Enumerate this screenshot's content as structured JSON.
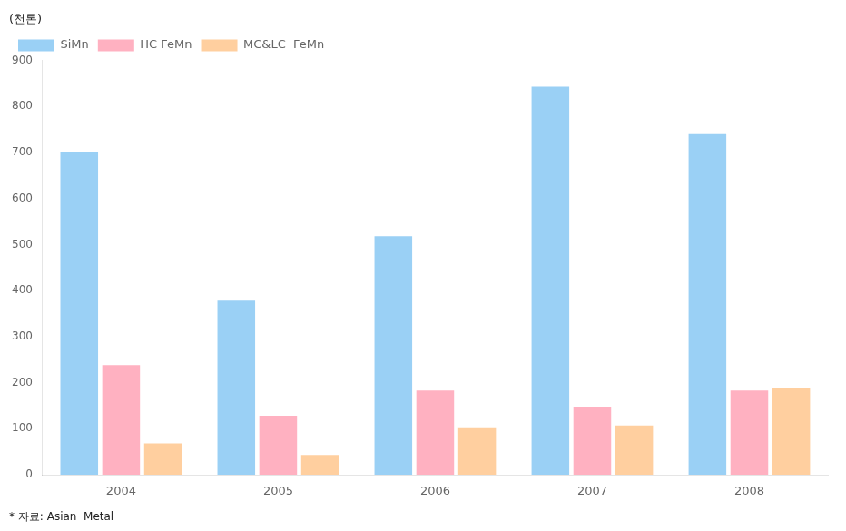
{
  "chart_data": {
    "type": "bar",
    "ylabel": "(천톤)",
    "annotations": [
      "* 자료: Asian  Metal"
    ],
    "categories": [
      "2004",
      "2005",
      "2006",
      "2007",
      "2008"
    ],
    "series": [
      {
        "name": "SiMn",
        "values": [
          700,
          378,
          518,
          843,
          740
        ]
      },
      {
        "name": "HC FeMn",
        "values": [
          238,
          128,
          183,
          148,
          183
        ]
      },
      {
        "name": "MC&LC  FeMn",
        "values": [
          68,
          43,
          103,
          107,
          188
        ]
      }
    ],
    "ylim": [
      0,
      900
    ],
    "yticks": [
      0,
      100,
      200,
      300,
      400,
      500,
      600,
      700,
      800,
      900
    ],
    "grid": false,
    "legend": "upper left"
  }
}
